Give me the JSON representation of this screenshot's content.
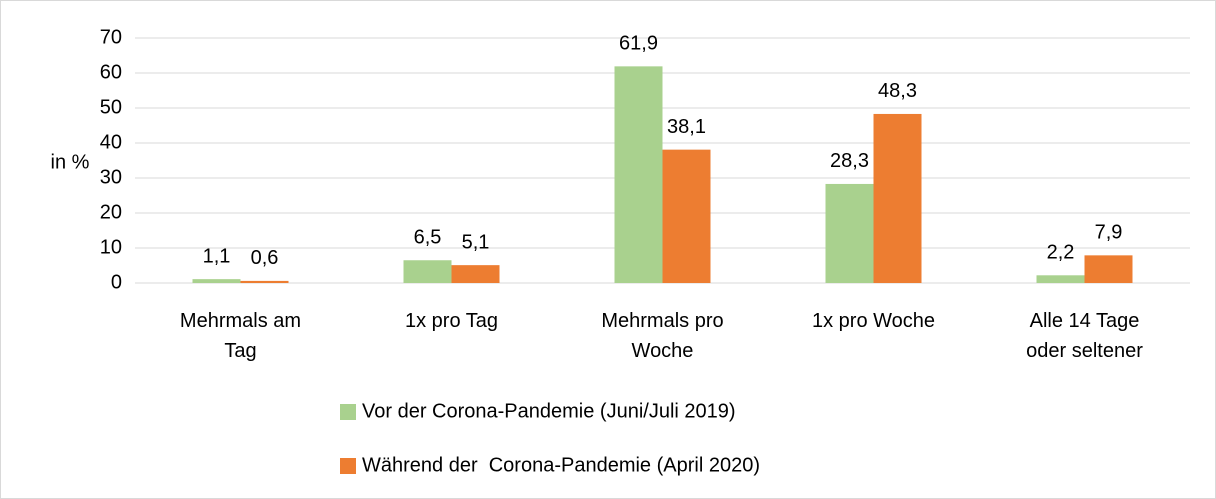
{
  "chart_data": {
    "type": "bar",
    "ylabel": "in %",
    "categories": [
      "Mehrmals am Tag",
      "1x pro Tag",
      "Mehrmals pro Woche",
      "1x pro Woche",
      "Alle 14 Tage oder seltener"
    ],
    "series": [
      {
        "name": "Vor der Corona-Pandemie (Juni/Juli 2019)",
        "color": "#a9d18e",
        "values": [
          1.1,
          6.5,
          61.9,
          28.3,
          2.2
        ],
        "value_labels": [
          "1,1",
          "6,5",
          "61,9",
          "28,3",
          "2,2"
        ]
      },
      {
        "name": "Während der  Corona-Pandemie (April 2020)",
        "color": "#ed7d31",
        "values": [
          0.6,
          5.1,
          38.1,
          48.3,
          7.9
        ],
        "value_labels": [
          "0,6",
          "5,1",
          "38,1",
          "48,3",
          "7,9"
        ]
      }
    ],
    "ylim": [
      0,
      70
    ],
    "yticks": [
      0,
      10,
      20,
      30,
      40,
      50,
      60,
      70
    ],
    "grid": true,
    "legend": "bottom"
  }
}
